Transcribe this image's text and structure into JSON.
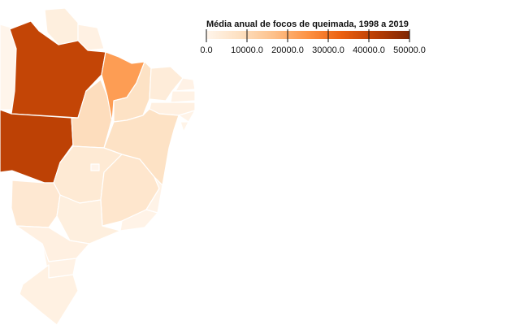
{
  "legend": {
    "title": "Média anual de focos de queimada, 1998 a 2019",
    "domain": [
      0,
      50000
    ],
    "ticks": [
      "0.0",
      "10000.0",
      "20000.0",
      "30000.0",
      "40000.0",
      "50000.0"
    ],
    "tick_values": [
      0,
      10000,
      20000,
      30000,
      40000,
      50000
    ],
    "color_stops": [
      "#fff5eb",
      "#fde0c1",
      "#fdc08a",
      "#fd9243",
      "#eb5f0f",
      "#b93e04",
      "#7f2704"
    ]
  },
  "map": {
    "states": [
      {
        "name": "amazonas",
        "value": 0
      },
      {
        "name": "para",
        "value": 40000
      },
      {
        "name": "mato-grosso",
        "value": 41000
      },
      {
        "name": "amapa",
        "value": 1500
      },
      {
        "name": "roraima",
        "value": 2500
      },
      {
        "name": "maranhao",
        "value": 23000
      },
      {
        "name": "tocantins",
        "value": 9000
      },
      {
        "name": "piaui",
        "value": 7500
      },
      {
        "name": "bahia",
        "value": 7500
      },
      {
        "name": "ceara",
        "value": 3500
      },
      {
        "name": "rio-grande-do-norte",
        "value": 1000
      },
      {
        "name": "paraiba",
        "value": 1200
      },
      {
        "name": "pernambuco",
        "value": 2000
      },
      {
        "name": "alagoas",
        "value": 800
      },
      {
        "name": "sergipe",
        "value": 500
      },
      {
        "name": "goias",
        "value": 4500
      },
      {
        "name": "distrito-federal",
        "value": 200
      },
      {
        "name": "minas-gerais",
        "value": 6000
      },
      {
        "name": "mato-grosso-do-sul",
        "value": 5000
      },
      {
        "name": "sao-paulo",
        "value": 2500
      },
      {
        "name": "rio-de-janeiro",
        "value": 700
      },
      {
        "name": "espirito-santo",
        "value": 800
      },
      {
        "name": "parana",
        "value": 2000
      },
      {
        "name": "santa-catarina",
        "value": 1200
      },
      {
        "name": "rio-grande-do-sul",
        "value": 1700
      }
    ]
  }
}
